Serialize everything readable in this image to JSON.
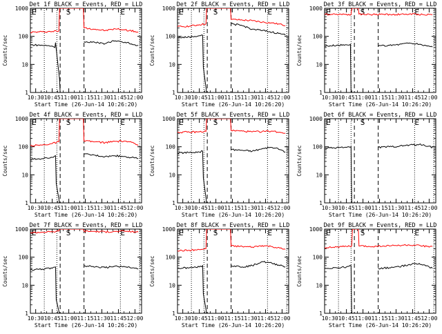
{
  "chart_data": [
    {
      "type": "line",
      "title": "Det 1f BLACK = Events, RED = LLD",
      "xlabel": "Start Time (26-Jun-14 10:26:20)",
      "ylabel": "Counts/sec",
      "xlim": [
        10.42,
        12.1
      ],
      "ylim": [
        1,
        1000
      ],
      "yscale": "log",
      "xticks": [
        "10:30",
        "10:45",
        "11:00",
        "11:15",
        "11:30",
        "11:45",
        "12:00"
      ],
      "yticks": [
        "1",
        "10",
        "100",
        "1000"
      ],
      "markers": [
        {
          "label": "E",
          "x": 10.44
        },
        {
          "label": "S",
          "x": 10.96
        },
        {
          "label": "E",
          "x": 11.78
        }
      ],
      "dotted_x": [
        10.63,
        10.82,
        11.78,
        12.07
      ],
      "dashed_x": [
        10.87,
        11.23
      ],
      "series": [
        {
          "color": "#ff0000",
          "x": [
            10.42,
            10.6,
            10.75,
            10.85,
            10.86,
            11.22,
            11.23,
            11.4,
            11.55,
            11.7,
            11.85,
            12.0,
            12.05
          ],
          "y": [
            140,
            145,
            150,
            155,
            1000,
            1000,
            200,
            180,
            160,
            185,
            170,
            150,
            140
          ]
        },
        {
          "color": "#000000",
          "x": [
            10.42,
            10.6,
            10.75,
            10.79,
            10.8,
            10.86,
            10.87
          ],
          "y": [
            50,
            48,
            45,
            40,
            60,
            3,
            1
          ]
        },
        {
          "color": "#000000",
          "x": [
            11.23,
            11.4,
            11.55,
            11.7,
            11.85,
            12.0,
            12.05
          ],
          "y": [
            65,
            60,
            55,
            70,
            62,
            50,
            48
          ]
        }
      ]
    },
    {
      "type": "line",
      "title": "Det 2f BLACK = Events, RED = LLD",
      "xlabel": "Start Time (26-Jun-14 10:26:20)",
      "ylabel": "Counts/sec",
      "xlim": [
        10.42,
        12.1
      ],
      "ylim": [
        1,
        1000
      ],
      "yscale": "log",
      "xticks": [
        "10:30",
        "10:45",
        "11:00",
        "11:15",
        "11:30",
        "11:45",
        "12:00"
      ],
      "yticks": [
        "1",
        "10",
        "100",
        "1000"
      ],
      "markers": [
        {
          "label": "E",
          "x": 10.44
        },
        {
          "label": "S",
          "x": 10.96
        },
        {
          "label": "E",
          "x": 11.78
        }
      ],
      "dotted_x": [
        10.63,
        10.82,
        11.78,
        12.07
      ],
      "dashed_x": [
        10.87,
        11.23
      ],
      "series": [
        {
          "color": "#ff0000",
          "x": [
            10.42,
            10.6,
            10.75,
            10.85,
            10.86,
            11.22,
            11.23,
            11.4,
            11.55,
            11.7,
            11.85,
            12.0,
            12.05
          ],
          "y": [
            220,
            230,
            260,
            280,
            1000,
            1000,
            400,
            380,
            360,
            320,
            300,
            260,
            240
          ]
        },
        {
          "color": "#000000",
          "x": [
            10.42,
            10.6,
            10.75,
            10.8,
            10.81,
            10.86
          ],
          "y": [
            90,
            95,
            105,
            110,
            8,
            1
          ]
        },
        {
          "color": "#000000",
          "x": [
            11.23,
            11.4,
            11.55,
            11.7,
            11.85,
            12.0,
            12.05
          ],
          "y": [
            280,
            240,
            180,
            160,
            140,
            120,
            110
          ]
        }
      ]
    },
    {
      "type": "line",
      "title": "Det 3f BLACK = Events, RED = LLD",
      "xlabel": "Start Time (26-Jun-14 10:26:20)",
      "ylabel": "Counts/sec",
      "xlim": [
        10.42,
        12.1
      ],
      "ylim": [
        1,
        1000
      ],
      "yscale": "log",
      "xticks": [
        "10:30",
        "10:45",
        "11:00",
        "11:15",
        "11:30",
        "11:45",
        "12:00"
      ],
      "yticks": [
        "1",
        "10",
        "100",
        "1000"
      ],
      "markers": [
        {
          "label": "E",
          "x": 10.44
        },
        {
          "label": "S",
          "x": 10.96
        },
        {
          "label": "E",
          "x": 11.78
        }
      ],
      "dotted_x": [
        10.63,
        10.82,
        11.78,
        12.07
      ],
      "dashed_x": [
        10.87,
        11.23
      ],
      "series": [
        {
          "color": "#ff0000",
          "x": [
            10.42,
            10.6,
            10.75,
            10.82,
            10.83,
            10.93,
            10.94,
            11.1,
            11.3,
            11.5,
            11.7,
            11.9,
            12.05
          ],
          "y": [
            600,
            620,
            610,
            600,
            1000,
            1000,
            620,
            600,
            610,
            600,
            620,
            600,
            600
          ]
        },
        {
          "color": "#000000",
          "x": [
            10.42,
            10.6,
            10.75,
            10.81,
            10.82,
            10.83
          ],
          "y": [
            45,
            48,
            50,
            52,
            1,
            1
          ]
        },
        {
          "color": "#000000",
          "x": [
            11.23,
            11.4,
            11.55,
            11.7,
            11.85,
            12.0,
            12.05
          ],
          "y": [
            45,
            48,
            52,
            58,
            52,
            45,
            42
          ]
        }
      ]
    },
    {
      "type": "line",
      "title": "Det 4f BLACK = Events, RED = LLD",
      "xlabel": "Start Time (26-Jun-14 10:26:20)",
      "ylabel": "Counts/sec",
      "xlim": [
        10.42,
        12.1
      ],
      "ylim": [
        1,
        1000
      ],
      "yscale": "log",
      "xticks": [
        "10:30",
        "10:45",
        "11:00",
        "11:15",
        "11:30",
        "11:45",
        "12:00"
      ],
      "yticks": [
        "1",
        "10",
        "100",
        "1000"
      ],
      "markers": [
        {
          "label": "E",
          "x": 10.44
        },
        {
          "label": "S",
          "x": 10.96
        },
        {
          "label": "E",
          "x": 11.78
        }
      ],
      "dotted_x": [
        10.63,
        10.82,
        11.78,
        12.07
      ],
      "dashed_x": [
        10.87,
        11.23
      ],
      "series": [
        {
          "color": "#ff0000",
          "x": [
            10.42,
            10.6,
            10.75,
            10.85,
            10.86,
            11.22,
            11.23,
            11.4,
            11.55,
            11.7,
            11.85,
            12.0,
            12.05
          ],
          "y": [
            110,
            115,
            130,
            150,
            1000,
            1000,
            160,
            150,
            140,
            155,
            160,
            130,
            110
          ]
        },
        {
          "color": "#000000",
          "x": [
            10.42,
            10.6,
            10.75,
            10.8,
            10.81,
            10.86
          ],
          "y": [
            35,
            38,
            42,
            48,
            5,
            1
          ]
        },
        {
          "color": "#000000",
          "x": [
            11.23,
            11.4,
            11.55,
            11.7,
            11.85,
            12.0,
            12.05
          ],
          "y": [
            55,
            50,
            45,
            48,
            45,
            40,
            38
          ]
        }
      ]
    },
    {
      "type": "line",
      "title": "Det 5f BLACK = Events, RED = LLD",
      "xlabel": "Start Time (26-Jun-14 10:26:20)",
      "ylabel": "Counts/sec",
      "xlim": [
        10.42,
        12.1
      ],
      "ylim": [
        1,
        1000
      ],
      "yscale": "log",
      "xticks": [
        "10:30",
        "10:45",
        "11:00",
        "11:15",
        "11:30",
        "11:45",
        "12:00"
      ],
      "yticks": [
        "1",
        "10",
        "100",
        "1000"
      ],
      "markers": [
        {
          "label": "E",
          "x": 10.44
        },
        {
          "label": "S",
          "x": 10.96
        },
        {
          "label": "E",
          "x": 11.78
        }
      ],
      "dotted_x": [
        10.63,
        10.82,
        11.78,
        12.07
      ],
      "dashed_x": [
        10.87,
        11.23
      ],
      "series": [
        {
          "color": "#ff0000",
          "x": [
            10.42,
            10.6,
            10.75,
            10.85,
            10.86,
            11.22,
            11.23,
            11.4,
            11.55,
            11.7,
            11.85,
            12.0,
            12.05
          ],
          "y": [
            330,
            330,
            340,
            350,
            1000,
            1000,
            380,
            360,
            340,
            350,
            360,
            320,
            300
          ]
        },
        {
          "color": "#000000",
          "x": [
            10.42,
            10.6,
            10.75,
            10.8,
            10.81,
            10.86
          ],
          "y": [
            60,
            62,
            65,
            70,
            8,
            1
          ]
        },
        {
          "color": "#000000",
          "x": [
            11.23,
            11.4,
            11.55,
            11.7,
            11.85,
            12.0,
            12.05
          ],
          "y": [
            80,
            75,
            70,
            85,
            95,
            75,
            65
          ]
        }
      ]
    },
    {
      "type": "line",
      "title": "Det 6f BLACK = Events, RED = LLD",
      "xlabel": "Start Time (26-Jun-14 10:26:20)",
      "ylabel": "Counts/sec",
      "xlim": [
        10.42,
        12.1
      ],
      "ylim": [
        1,
        1000
      ],
      "yscale": "log",
      "xticks": [
        "10:30",
        "10:45",
        "11:00",
        "11:15",
        "11:30",
        "11:45",
        "12:00"
      ],
      "yticks": [
        "1",
        "10",
        "100",
        "1000"
      ],
      "markers": [
        {
          "label": "E",
          "x": 10.44
        },
        {
          "label": "S",
          "x": 10.96
        },
        {
          "label": "E",
          "x": 11.78
        }
      ],
      "dotted_x": [
        10.63,
        10.82,
        11.78,
        12.07
      ],
      "dashed_x": [
        10.87,
        11.23
      ],
      "series": [
        {
          "color": "#000000",
          "x": [
            10.42,
            10.6,
            10.75,
            10.82,
            10.83
          ],
          "y": [
            90,
            92,
            95,
            100,
            1
          ]
        },
        {
          "color": "#000000",
          "x": [
            11.23,
            11.4,
            11.55,
            11.7,
            11.85,
            12.0,
            12.05
          ],
          "y": [
            95,
            100,
            105,
            115,
            120,
            105,
            95
          ]
        }
      ]
    },
    {
      "type": "line",
      "title": "Det 7f BLACK = Events, RED = LLD",
      "xlabel": "Start Time (26-Jun-14 10:26:20)",
      "ylabel": "Counts/sec",
      "xlim": [
        10.42,
        12.1
      ],
      "ylim": [
        1,
        1000
      ],
      "yscale": "log",
      "xticks": [
        "10:30",
        "10:45",
        "11:00",
        "11:15",
        "11:30",
        "11:45",
        "12:00"
      ],
      "yticks": [
        "1",
        "10",
        "100",
        "1000"
      ],
      "markers": [
        {
          "label": "E",
          "x": 10.44
        },
        {
          "label": "S",
          "x": 10.96
        },
        {
          "label": "E",
          "x": 11.78
        }
      ],
      "dotted_x": [
        10.63,
        10.82,
        11.78,
        12.07
      ],
      "dashed_x": [
        10.87,
        11.23
      ],
      "series": [
        {
          "color": "#ff0000",
          "x": [
            10.42,
            10.6,
            10.75,
            10.85,
            10.86,
            11.22,
            11.23,
            11.4,
            11.55,
            11.7,
            11.85,
            12.0,
            12.05
          ],
          "y": [
            750,
            780,
            800,
            850,
            1000,
            1000,
            850,
            830,
            800,
            820,
            850,
            800,
            780
          ]
        },
        {
          "color": "#000000",
          "x": [
            10.42,
            10.6,
            10.75,
            10.8,
            10.81,
            10.86
          ],
          "y": [
            35,
            38,
            40,
            45,
            3,
            1
          ]
        },
        {
          "color": "#000000",
          "x": [
            11.23,
            11.4,
            11.55,
            11.7,
            11.85,
            12.0,
            12.05
          ],
          "y": [
            50,
            45,
            42,
            48,
            45,
            40,
            38
          ]
        }
      ]
    },
    {
      "type": "line",
      "title": "Det 8f BLACK = Events, RED = LLD",
      "xlabel": "Start Time (26-Jun-14 10:26:20)",
      "ylabel": "Counts/sec",
      "xlim": [
        10.42,
        12.1
      ],
      "ylim": [
        1,
        1000
      ],
      "yscale": "log",
      "xticks": [
        "10:30",
        "10:45",
        "11:00",
        "11:15",
        "11:30",
        "11:45",
        "12:00"
      ],
      "yticks": [
        "1",
        "10",
        "100",
        "1000"
      ],
      "markers": [
        {
          "label": "E",
          "x": 10.44
        },
        {
          "label": "S",
          "x": 10.96
        },
        {
          "label": "E",
          "x": 11.78
        }
      ],
      "dotted_x": [
        10.63,
        10.82,
        11.78,
        12.07
      ],
      "dashed_x": [
        10.87,
        11.23
      ],
      "series": [
        {
          "color": "#ff0000",
          "x": [
            10.42,
            10.6,
            10.75,
            10.85,
            10.86,
            11.22,
            11.23,
            11.4,
            11.55,
            11.7,
            11.85,
            12.0,
            12.05
          ],
          "y": [
            170,
            175,
            185,
            200,
            1000,
            1000,
            250,
            240,
            230,
            260,
            240,
            200,
            190
          ]
        },
        {
          "color": "#000000",
          "x": [
            10.42,
            10.6,
            10.75,
            10.8,
            10.81,
            10.86
          ],
          "y": [
            40,
            42,
            45,
            50,
            5,
            1
          ]
        },
        {
          "color": "#000000",
          "x": [
            11.23,
            11.4,
            11.55,
            11.7,
            11.85,
            12.0,
            12.05
          ],
          "y": [
            50,
            45,
            50,
            70,
            60,
            50,
            45
          ]
        }
      ]
    },
    {
      "type": "line",
      "title": "Det 9f BLACK = Events, RED = LLD",
      "xlabel": "Start Time (26-Jun-14 10:26:20)",
      "ylabel": "Counts/sec",
      "xlim": [
        10.42,
        12.1
      ],
      "ylim": [
        1,
        1000
      ],
      "yscale": "log",
      "xticks": [
        "10:30",
        "10:45",
        "11:00",
        "11:15",
        "11:30",
        "11:45",
        "12:00"
      ],
      "yticks": [
        "1",
        "10",
        "100",
        "1000"
      ],
      "markers": [
        {
          "label": "E",
          "x": 10.44
        },
        {
          "label": "S",
          "x": 10.96
        },
        {
          "label": "E",
          "x": 11.78
        }
      ],
      "dotted_x": [
        10.63,
        10.82,
        11.78,
        12.07
      ],
      "dashed_x": [
        10.87,
        11.23
      ],
      "series": [
        {
          "color": "#ff0000",
          "x": [
            10.42,
            10.6,
            10.75,
            10.83,
            10.84,
            10.93,
            10.94,
            11.1,
            11.3,
            11.5,
            11.7,
            11.9,
            12.05
          ],
          "y": [
            220,
            230,
            240,
            250,
            1000,
            1000,
            250,
            240,
            250,
            260,
            270,
            250,
            240
          ]
        },
        {
          "color": "#000000",
          "x": [
            10.42,
            10.6,
            10.75,
            10.82,
            10.83
          ],
          "y": [
            40,
            42,
            45,
            50,
            1
          ]
        },
        {
          "color": "#000000",
          "x": [
            11.23,
            11.4,
            11.55,
            11.7,
            11.85,
            12.0,
            12.05
          ],
          "y": [
            40,
            42,
            45,
            55,
            60,
            45,
            40
          ]
        }
      ]
    }
  ]
}
